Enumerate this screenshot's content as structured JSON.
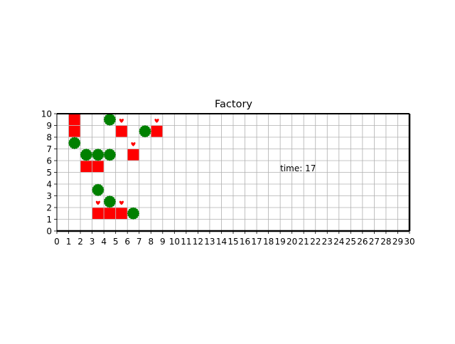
{
  "chart_data": {
    "type": "scatter",
    "title": "Factory",
    "xlabel": "",
    "ylabel": "",
    "xlim": [
      0,
      30
    ],
    "ylim": [
      0,
      10
    ],
    "xticks": [
      0,
      1,
      2,
      3,
      4,
      5,
      6,
      7,
      8,
      9,
      10,
      11,
      12,
      13,
      14,
      15,
      16,
      17,
      18,
      19,
      20,
      21,
      22,
      23,
      24,
      25,
      26,
      27,
      28,
      29,
      30
    ],
    "yticks": [
      0,
      1,
      2,
      3,
      4,
      5,
      6,
      7,
      8,
      9,
      10
    ],
    "grid": true,
    "annotation": {
      "text": "time: 17",
      "x": 19,
      "y": 5.1
    },
    "colors": {
      "block": "#ff0000",
      "agent": "#008000",
      "grid": "#b0b0b0",
      "heart": "#ff0000"
    },
    "series": [
      {
        "marker": "square",
        "color": "#ff0000",
        "points": [
          [
            1.5,
            9.5
          ],
          [
            1.5,
            8.5
          ],
          [
            5.5,
            8.5
          ],
          [
            8.5,
            8.5
          ],
          [
            6.5,
            6.5
          ],
          [
            2.5,
            5.5
          ],
          [
            3.5,
            5.5
          ],
          [
            3.5,
            1.5
          ],
          [
            4.5,
            1.5
          ],
          [
            5.5,
            1.5
          ]
        ]
      },
      {
        "marker": "circle",
        "color": "#008000",
        "points": [
          [
            4.5,
            9.5
          ],
          [
            7.5,
            8.5
          ],
          [
            1.5,
            7.5
          ],
          [
            2.5,
            6.5
          ],
          [
            3.5,
            6.5
          ],
          [
            4.5,
            6.5
          ],
          [
            3.5,
            3.5
          ],
          [
            4.5,
            2.5
          ],
          [
            6.5,
            1.5
          ]
        ]
      },
      {
        "marker": "heart",
        "color": "#ff0000",
        "points": [
          [
            5.5,
            9.4
          ],
          [
            8.5,
            9.4
          ],
          [
            6.5,
            7.4
          ],
          [
            3.5,
            2.4
          ],
          [
            5.5,
            2.4
          ]
        ]
      }
    ]
  }
}
